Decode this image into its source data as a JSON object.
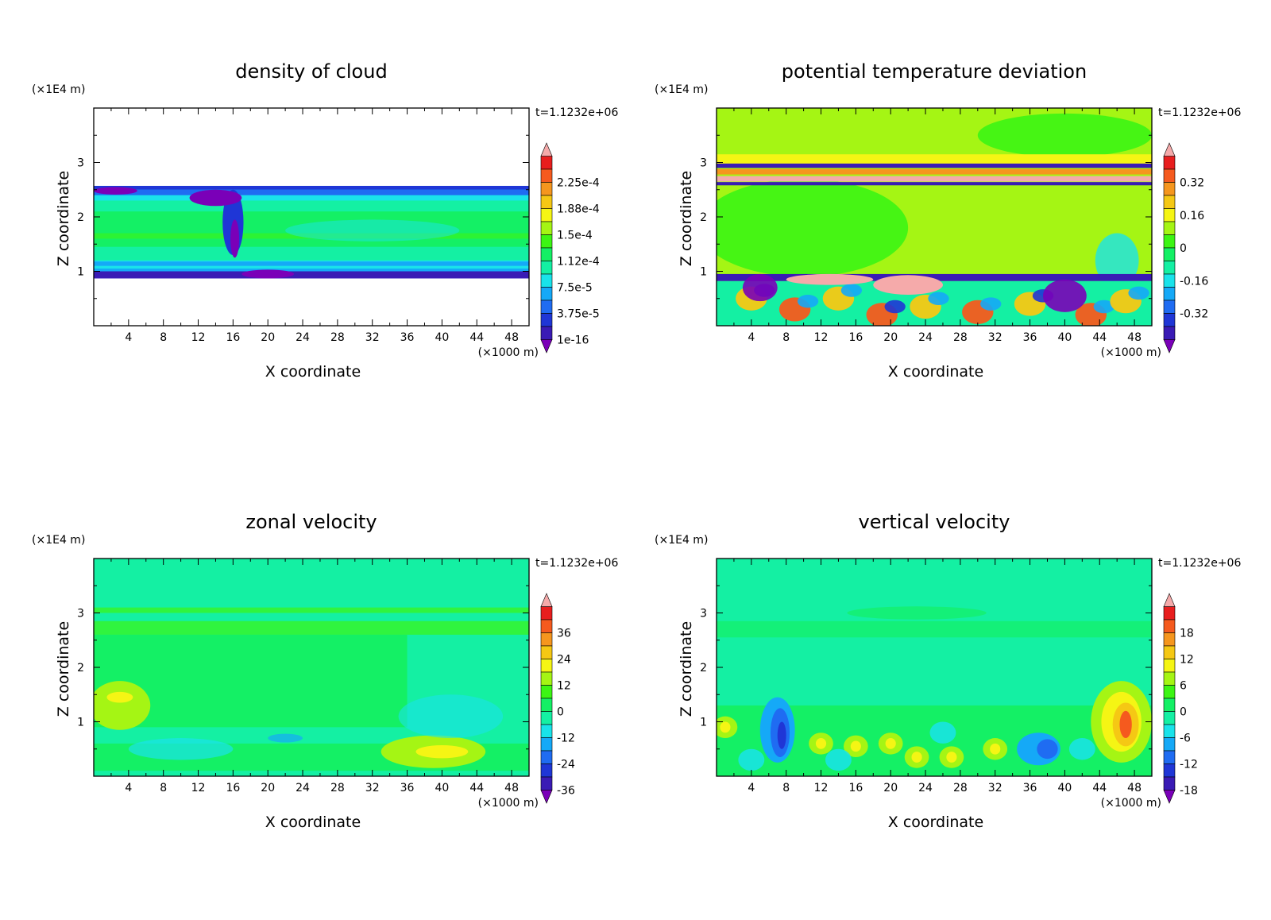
{
  "colors": {
    "scale": [
      "#7a00b8",
      "#3a1bb5",
      "#1f36d6",
      "#1f6cf2",
      "#15a9f7",
      "#19e3ea",
      "#14f0a3",
      "#14f065",
      "#3cf514",
      "#a5f514",
      "#f5f514",
      "#f5c814",
      "#f5961e",
      "#f55a1e",
      "#e81e1e",
      "#f5aaaa"
    ]
  },
  "chart_data": [
    {
      "type": "heatmap",
      "title": "density of cloud",
      "xlabel": "X coordinate",
      "ylabel": "Z coordinate",
      "x_unit": "(×1000 m)",
      "y_unit": "(×1E4 m)",
      "time_label": "t=1.1232e+06",
      "x_ticks": [
        "4",
        "8",
        "12",
        "16",
        "20",
        "24",
        "28",
        "32",
        "36",
        "40",
        "44",
        "48"
      ],
      "y_ticks": [
        "1",
        "2",
        "3"
      ],
      "xlim": [
        0,
        50
      ],
      "ylim": [
        0,
        4
      ],
      "colorbar_labels": [
        "2.25e-4",
        "1.88e-4",
        "1.5e-4",
        "1.12e-4",
        "7.5e-5",
        "3.75e-5",
        "1e-16"
      ],
      "description_regions": [
        {
          "x": [
            0,
            50
          ],
          "y": [
            0.87,
            2.57
          ],
          "level": 5
        },
        {
          "x": [
            0,
            50
          ],
          "y": [
            1.05,
            1.2
          ],
          "level": 4
        },
        {
          "x": [
            0,
            50
          ],
          "y": [
            1.5,
            2.0
          ],
          "level": 7
        },
        {
          "x": [
            0,
            50
          ],
          "y": [
            2.4,
            2.57
          ],
          "level": 3
        },
        {
          "x": [
            0,
            50
          ],
          "y": [
            0.87,
            1.05
          ],
          "level": 2
        }
      ]
    },
    {
      "type": "heatmap",
      "title": "potential temperature deviation",
      "xlabel": "X coordinate",
      "ylabel": "Z coordinate",
      "x_unit": "(×1000 m)",
      "y_unit": "(×1E4 m)",
      "time_label": "t=1.1232e+06",
      "x_ticks": [
        "4",
        "8",
        "12",
        "16",
        "20",
        "24",
        "28",
        "32",
        "36",
        "40",
        "44",
        "48"
      ],
      "y_ticks": [
        "1",
        "2",
        "3"
      ],
      "xlim": [
        0,
        50
      ],
      "ylim": [
        0,
        4
      ],
      "colorbar_labels": [
        "0.32",
        "0.16",
        "0",
        "-0.16",
        "-0.32"
      ]
    },
    {
      "type": "heatmap",
      "title": "zonal velocity",
      "xlabel": "X coordinate",
      "ylabel": "Z coordinate",
      "x_unit": "(×1000 m)",
      "y_unit": "(×1E4 m)",
      "time_label": "t=1.1232e+06",
      "x_ticks": [
        "4",
        "8",
        "12",
        "16",
        "20",
        "24",
        "28",
        "32",
        "36",
        "40",
        "44",
        "48"
      ],
      "y_ticks": [
        "1",
        "2",
        "3"
      ],
      "xlim": [
        0,
        50
      ],
      "ylim": [
        0,
        4
      ],
      "colorbar_labels": [
        "36",
        "24",
        "12",
        "0",
        "-12",
        "-24",
        "-36"
      ]
    },
    {
      "type": "heatmap",
      "title": "vertical velocity",
      "xlabel": "X coordinate",
      "ylabel": "Z coordinate",
      "x_unit": "(×1000 m)",
      "y_unit": "(×1E4 m)",
      "time_label": "t=1.1232e+06",
      "x_ticks": [
        "4",
        "8",
        "12",
        "16",
        "20",
        "24",
        "28",
        "32",
        "36",
        "40",
        "44",
        "48"
      ],
      "y_ticks": [
        "1",
        "2",
        "3"
      ],
      "xlim": [
        0,
        50
      ],
      "ylim": [
        0,
        4
      ],
      "colorbar_labels": [
        "18",
        "12",
        "6",
        "0",
        "-6",
        "-12",
        "-18"
      ]
    }
  ]
}
